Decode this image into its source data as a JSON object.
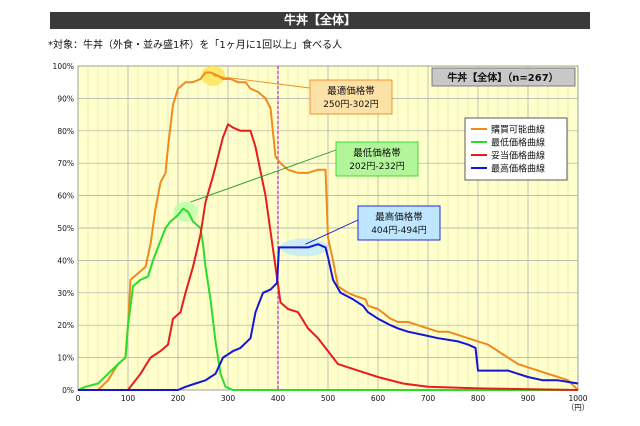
{
  "header": {
    "title": "牛丼【全体】",
    "subtitle": "*対象：牛丼（外食・並み盛1杯）を「1ヶ月に1回以上」食べる人"
  },
  "chart_data": {
    "type": "line",
    "panel_label": "牛丼【全体】（n=267）",
    "x_unit": "（円）",
    "xlim": [
      0,
      1000
    ],
    "ylim": [
      0,
      100
    ],
    "x_ticks": [
      0,
      100,
      200,
      300,
      400,
      500,
      600,
      700,
      800,
      900,
      1000
    ],
    "y_ticks": [
      "0%",
      "10%",
      "20%",
      "30%",
      "40%",
      "50%",
      "60%",
      "70%",
      "80%",
      "90%",
      "100%"
    ],
    "grid": true,
    "legend_position": "right",
    "reference_line_x": 400,
    "series": [
      {
        "name": "購買可能曲線",
        "color": "#f08a1e",
        "points": [
          [
            0,
            0
          ],
          [
            40,
            0
          ],
          [
            60,
            3
          ],
          [
            80,
            8
          ],
          [
            95,
            10
          ],
          [
            100,
            20
          ],
          [
            105,
            34
          ],
          [
            120,
            36
          ],
          [
            135,
            38
          ],
          [
            145,
            45
          ],
          [
            155,
            56
          ],
          [
            165,
            64
          ],
          [
            175,
            67
          ],
          [
            180,
            75
          ],
          [
            190,
            88
          ],
          [
            200,
            93
          ],
          [
            215,
            95
          ],
          [
            230,
            95
          ],
          [
            245,
            96
          ],
          [
            255,
            98
          ],
          [
            265,
            98
          ],
          [
            280,
            97
          ],
          [
            290,
            96
          ],
          [
            305,
            96
          ],
          [
            320,
            95
          ],
          [
            335,
            95
          ],
          [
            345,
            93
          ],
          [
            360,
            92
          ],
          [
            375,
            90
          ],
          [
            385,
            87
          ],
          [
            395,
            72
          ],
          [
            405,
            70
          ],
          [
            420,
            68
          ],
          [
            440,
            67
          ],
          [
            460,
            67
          ],
          [
            480,
            68
          ],
          [
            495,
            68
          ],
          [
            500,
            47
          ],
          [
            510,
            40
          ],
          [
            520,
            32
          ],
          [
            540,
            30
          ],
          [
            555,
            29
          ],
          [
            575,
            28
          ],
          [
            580,
            26
          ],
          [
            600,
            25
          ],
          [
            625,
            22
          ],
          [
            640,
            21
          ],
          [
            660,
            21
          ],
          [
            680,
            20
          ],
          [
            700,
            19
          ],
          [
            720,
            18
          ],
          [
            740,
            18
          ],
          [
            760,
            17
          ],
          [
            780,
            16
          ],
          [
            800,
            15
          ],
          [
            820,
            14
          ],
          [
            840,
            12
          ],
          [
            860,
            10
          ],
          [
            880,
            8
          ],
          [
            900,
            7
          ],
          [
            920,
            6
          ],
          [
            940,
            5
          ],
          [
            960,
            4
          ],
          [
            980,
            3
          ],
          [
            1000,
            0
          ]
        ]
      },
      {
        "name": "最低価格曲線",
        "color": "#2bdc2b",
        "points": [
          [
            0,
            0
          ],
          [
            15,
            1
          ],
          [
            40,
            2
          ],
          [
            60,
            5
          ],
          [
            80,
            8
          ],
          [
            95,
            10
          ],
          [
            100,
            20
          ],
          [
            110,
            32
          ],
          [
            125,
            34
          ],
          [
            140,
            35
          ],
          [
            150,
            40
          ],
          [
            160,
            44
          ],
          [
            170,
            48
          ],
          [
            175,
            50
          ],
          [
            185,
            52
          ],
          [
            200,
            54
          ],
          [
            210,
            56
          ],
          [
            220,
            55
          ],
          [
            230,
            52
          ],
          [
            245,
            50
          ],
          [
            250,
            45
          ],
          [
            255,
            38
          ],
          [
            265,
            28
          ],
          [
            275,
            15
          ],
          [
            285,
            5
          ],
          [
            295,
            1
          ],
          [
            310,
            0
          ],
          [
            1000,
            0
          ]
        ]
      },
      {
        "name": "妥当価格曲線",
        "color": "#e81c1c",
        "points": [
          [
            0,
            0
          ],
          [
            100,
            0
          ],
          [
            110,
            2
          ],
          [
            125,
            5
          ],
          [
            145,
            10
          ],
          [
            155,
            11
          ],
          [
            165,
            12
          ],
          [
            180,
            14
          ],
          [
            190,
            22
          ],
          [
            205,
            24
          ],
          [
            215,
            30
          ],
          [
            230,
            38
          ],
          [
            245,
            48
          ],
          [
            255,
            58
          ],
          [
            270,
            66
          ],
          [
            290,
            78
          ],
          [
            300,
            82
          ],
          [
            310,
            81
          ],
          [
            325,
            80
          ],
          [
            345,
            80
          ],
          [
            355,
            75
          ],
          [
            375,
            60
          ],
          [
            395,
            38
          ],
          [
            405,
            27
          ],
          [
            420,
            25
          ],
          [
            440,
            24
          ],
          [
            460,
            19
          ],
          [
            480,
            16
          ],
          [
            500,
            12
          ],
          [
            520,
            8
          ],
          [
            540,
            7
          ],
          [
            560,
            6
          ],
          [
            580,
            5
          ],
          [
            600,
            4
          ],
          [
            650,
            2
          ],
          [
            700,
            1
          ],
          [
            800,
            0.5
          ],
          [
            1000,
            0
          ]
        ]
      },
      {
        "name": "最高価格曲線",
        "color": "#1515d6",
        "points": [
          [
            0,
            0
          ],
          [
            200,
            0
          ],
          [
            215,
            1
          ],
          [
            235,
            2
          ],
          [
            255,
            3
          ],
          [
            265,
            4
          ],
          [
            275,
            5
          ],
          [
            290,
            10
          ],
          [
            310,
            12
          ],
          [
            325,
            13
          ],
          [
            345,
            16
          ],
          [
            355,
            24
          ],
          [
            370,
            30
          ],
          [
            385,
            31
          ],
          [
            398,
            33
          ],
          [
            402,
            44
          ],
          [
            415,
            44
          ],
          [
            440,
            44
          ],
          [
            460,
            44
          ],
          [
            480,
            45
          ],
          [
            495,
            44
          ],
          [
            500,
            41
          ],
          [
            510,
            34
          ],
          [
            525,
            30
          ],
          [
            550,
            28
          ],
          [
            570,
            26
          ],
          [
            580,
            24
          ],
          [
            600,
            22
          ],
          [
            625,
            20
          ],
          [
            640,
            19
          ],
          [
            660,
            18
          ],
          [
            690,
            17
          ],
          [
            720,
            16
          ],
          [
            760,
            15
          ],
          [
            780,
            14
          ],
          [
            795,
            13
          ],
          [
            800,
            6
          ],
          [
            820,
            6
          ],
          [
            860,
            6
          ],
          [
            880,
            5
          ],
          [
            900,
            4
          ],
          [
            930,
            3
          ],
          [
            960,
            3
          ],
          [
            1000,
            2
          ]
        ]
      }
    ],
    "highlights": [
      {
        "name": "最適価格帯",
        "x": 270,
        "y": 97,
        "color": "#ffe14a"
      },
      {
        "name": "最低価格帯",
        "x": 215,
        "y": 55,
        "color": "#b6ffa6"
      },
      {
        "name": "最高価格帯",
        "x": 452,
        "y": 44,
        "color": "#b8e8ff"
      }
    ],
    "annotations": [
      {
        "name": "最適価格帯",
        "title": "最適価格帯",
        "range": "250円-302円",
        "bg": "#fde2a8",
        "border": "#f08a1e",
        "line_color": "#f08a1e",
        "point_x": 270,
        "point_y": 97
      },
      {
        "name": "最低価格帯",
        "title": "最低価格帯",
        "range": "202円-232円",
        "bg": "#b3f59a",
        "border": "#2bdc2b",
        "line_color": "#1f9a1f",
        "point_x": 225,
        "point_y": 58
      },
      {
        "name": "最高価格帯",
        "title": "最高価格帯",
        "range": "404円-494円",
        "bg": "#bfe6ff",
        "border": "#1515d6",
        "line_color": "#1515d6",
        "point_x": 455,
        "point_y": 45
      }
    ]
  }
}
